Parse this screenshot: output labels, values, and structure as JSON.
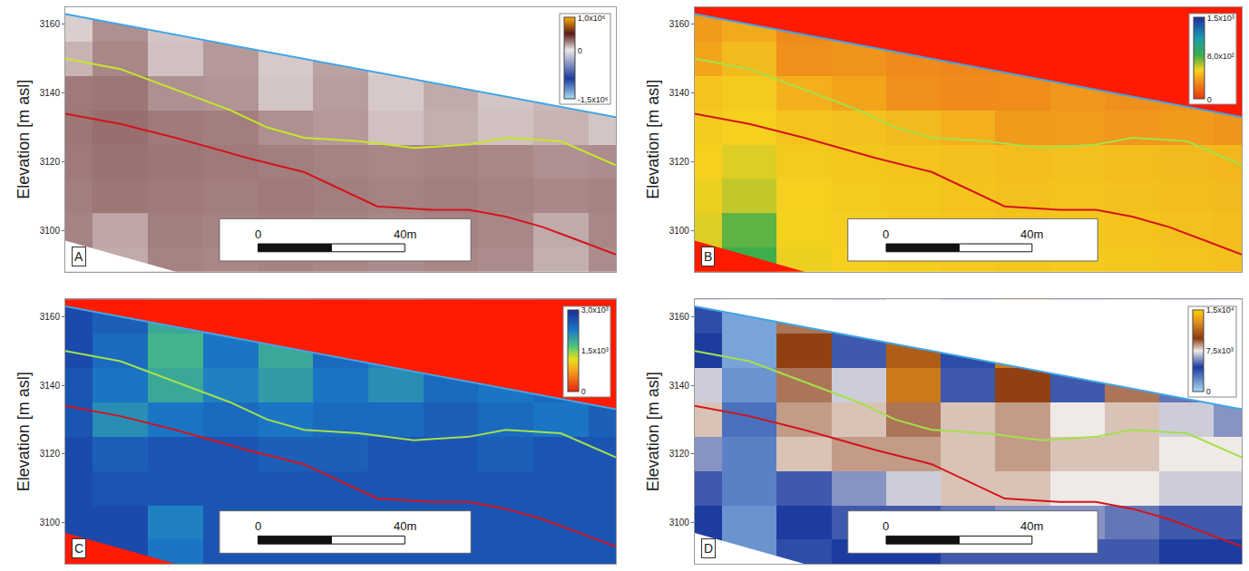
{
  "chart_data": [
    {
      "type": "heatmap",
      "panel": "A",
      "ylabel": "Elevation [m asl]",
      "xlim": [
        0,
        150
      ],
      "ylim": [
        3088,
        3165
      ],
      "yticks": [
        3100,
        3120,
        3140,
        3160
      ],
      "tick_labels": "y",
      "grid": false,
      "x": [
        0,
        15,
        30,
        45,
        60,
        75,
        90,
        105,
        120,
        135,
        150
      ],
      "y": [
        3090,
        3100,
        3110,
        3120,
        3130,
        3140,
        3150,
        3160
      ],
      "cells": [
        [
          220000,
          140000,
          230000,
          220000,
          230000,
          220000,
          210000,
          220000,
          210000,
          130000,
          210000
        ],
        [
          230000,
          150000,
          240000,
          230000,
          240000,
          230000,
          220000,
          230000,
          220000,
          140000,
          220000
        ],
        [
          240000,
          260000,
          250000,
          240000,
          250000,
          240000,
          230000,
          240000,
          230000,
          220000,
          230000
        ],
        [
          250000,
          270000,
          260000,
          250000,
          240000,
          230000,
          220000,
          230000,
          220000,
          200000,
          210000
        ],
        [
          260000,
          280000,
          250000,
          240000,
          200000,
          180000,
          90000,
          130000,
          90000,
          120000,
          80000
        ],
        [
          250000,
          260000,
          200000,
          190000,
          80000,
          170000,
          70000,
          140000,
          80000,
          110000,
          70000
        ],
        [
          120000,
          220000,
          90000,
          180000,
          70000,
          160000,
          60000,
          120000,
          70000,
          90000,
          60000
        ],
        [
          60000,
          200000,
          80000,
          150000,
          60000,
          100000,
          50000,
          60000,
          50000,
          60000,
          50000
        ]
      ],
      "colorbar_range": [
        -1500000,
        1000000
      ],
      "colorbar_ticks": [
        {
          "value": 1000000,
          "label": "1,0x10⁶"
        },
        0,
        {
          "value": -1500000,
          "label": "-1,5x10⁶"
        }
      ],
      "series": [
        {
          "color": "#41a5e6",
          "x": [
            0,
            30,
            60,
            90,
            120,
            150
          ],
          "values": [
            3163,
            3157,
            3151,
            3145,
            3139,
            3133
          ]
        },
        {
          "color": "#c5e82a",
          "x": [
            0,
            15,
            30,
            45,
            55,
            65,
            80,
            95,
            110,
            120,
            135,
            150
          ],
          "values": [
            3150,
            3147,
            3141,
            3135,
            3130,
            3127,
            3126,
            3124,
            3125,
            3127,
            3126,
            3119
          ]
        },
        {
          "color": "#d4141c",
          "x": [
            0,
            15,
            30,
            50,
            65,
            75,
            85,
            100,
            110,
            120,
            130,
            140,
            150
          ],
          "values": [
            3134,
            3131,
            3127,
            3121,
            3117,
            3112,
            3107,
            3106,
            3106,
            3104,
            3101,
            3097,
            3093
          ]
        }
      ],
      "data_bottom": {
        "x": [
          0,
          150
        ],
        "values": [
          3097,
          3052
        ]
      },
      "scale_bar": {
        "length": 40,
        "labels": [
          "0",
          "40m"
        ]
      }
    },
    {
      "type": "heatmap",
      "panel": "B",
      "ylabel": "Elevation [m asl]",
      "xlim": [
        0,
        150
      ],
      "ylim": [
        3088,
        3165
      ],
      "yticks": [
        3100,
        3120,
        3140,
        3160
      ],
      "tick_labels": "y",
      "grid": false,
      "x": [
        0,
        15,
        30,
        45,
        60,
        75,
        90,
        105,
        120,
        135,
        150
      ],
      "y": [
        3090,
        3100,
        3110,
        3120,
        3130,
        3140,
        3150,
        3160
      ],
      "cells": [
        [
          570,
          800,
          540,
          520,
          510,
          500,
          490,
          500,
          490,
          480,
          470
        ],
        [
          560,
          750,
          530,
          510,
          500,
          490,
          480,
          490,
          480,
          470,
          460
        ],
        [
          540,
          600,
          520,
          500,
          490,
          480,
          470,
          480,
          470,
          460,
          450
        ],
        [
          520,
          560,
          500,
          490,
          480,
          470,
          460,
          470,
          460,
          450,
          440
        ],
        [
          500,
          520,
          480,
          470,
          450,
          420,
          350,
          360,
          340,
          350,
          330
        ],
        [
          480,
          500,
          420,
          380,
          320,
          300,
          310,
          340,
          320,
          330,
          310
        ],
        [
          380,
          450,
          320,
          330,
          300,
          290,
          300,
          330,
          310,
          320,
          300
        ],
        [
          350,
          400,
          300,
          320,
          300,
          280,
          300,
          320,
          300,
          310,
          300
        ]
      ],
      "colorbar_range": [
        0,
        1500
      ],
      "colorbar_ticks": [
        {
          "value": 1500,
          "label": "1,5x10³"
        },
        {
          "value": 800,
          "label": "8,0x10²"
        },
        0
      ],
      "series": [
        {
          "color": "#41a5e6",
          "x": [
            0,
            30,
            60,
            90,
            120,
            150
          ],
          "values": [
            3163,
            3157,
            3151,
            3145,
            3139,
            3133
          ]
        },
        {
          "color": "#a4e04c",
          "x": [
            0,
            15,
            30,
            45,
            55,
            65,
            80,
            95,
            110,
            120,
            135,
            150
          ],
          "values": [
            3150,
            3147,
            3141,
            3135,
            3130,
            3127,
            3126,
            3124,
            3125,
            3127,
            3126,
            3119
          ]
        },
        {
          "color": "#d4141c",
          "x": [
            0,
            15,
            30,
            50,
            65,
            75,
            85,
            100,
            110,
            120,
            130,
            140,
            150
          ],
          "values": [
            3134,
            3131,
            3127,
            3121,
            3117,
            3112,
            3107,
            3106,
            3106,
            3104,
            3101,
            3097,
            3093
          ]
        }
      ],
      "data_bottom": {
        "x": [
          0,
          150
        ],
        "values": [
          3097,
          3052
        ]
      },
      "scale_bar": {
        "length": 40,
        "labels": [
          "0",
          "40m"
        ]
      }
    },
    {
      "type": "heatmap",
      "panel": "C",
      "ylabel": "Elevation [m asl]",
      "xlim": [
        0,
        150
      ],
      "ylim": [
        3088,
        3165
      ],
      "yticks": [
        3100,
        3120,
        3140,
        3160
      ],
      "tick_labels": "y",
      "grid": false,
      "x": [
        0,
        15,
        30,
        45,
        60,
        75,
        90,
        105,
        120,
        135,
        150
      ],
      "y": [
        3090,
        3100,
        3110,
        3120,
        3130,
        3140,
        3150,
        3160
      ],
      "cells": [
        [
          2700,
          2700,
          2300,
          2600,
          2600,
          2600,
          2600,
          2600,
          2600,
          2600,
          2600
        ],
        [
          2700,
          2700,
          2200,
          2600,
          2600,
          2600,
          2600,
          2600,
          2600,
          2600,
          2600
        ],
        [
          2700,
          2600,
          2600,
          2600,
          2600,
          2600,
          2600,
          2600,
          2600,
          2600,
          2600
        ],
        [
          2700,
          2500,
          2600,
          2600,
          2500,
          2500,
          2600,
          2600,
          2500,
          2600,
          2600
        ],
        [
          2600,
          2100,
          2300,
          2400,
          2300,
          2400,
          2400,
          2500,
          2400,
          2300,
          2500
        ],
        [
          2600,
          2300,
          1900,
          2200,
          2000,
          2300,
          2100,
          2400,
          2300,
          2400,
          2500
        ],
        [
          2700,
          2400,
          1800,
          2300,
          1900,
          2400,
          2200,
          2500,
          2400,
          2500,
          2600
        ],
        [
          2700,
          2500,
          1900,
          2400,
          2000,
          2500,
          2300,
          2600,
          2500,
          2600,
          2600
        ]
      ],
      "colorbar_range": [
        0,
        3000
      ],
      "colorbar_ticks": [
        {
          "value": 3000,
          "label": "3,0x10³"
        },
        {
          "value": 1500,
          "label": "1,5x10³"
        },
        0
      ],
      "series": [
        {
          "color": "#41a5e6",
          "x": [
            0,
            30,
            60,
            90,
            120,
            150
          ],
          "values": [
            3163,
            3157,
            3151,
            3145,
            3139,
            3133
          ]
        },
        {
          "color": "#a4e04c",
          "x": [
            0,
            15,
            30,
            45,
            55,
            65,
            80,
            95,
            110,
            120,
            135,
            150
          ],
          "values": [
            3150,
            3147,
            3141,
            3135,
            3130,
            3127,
            3126,
            3124,
            3125,
            3127,
            3126,
            3119
          ]
        },
        {
          "color": "#d4141c",
          "x": [
            0,
            15,
            30,
            50,
            65,
            75,
            85,
            100,
            110,
            120,
            130,
            140,
            150
          ],
          "values": [
            3134,
            3131,
            3127,
            3121,
            3117,
            3112,
            3107,
            3106,
            3106,
            3104,
            3101,
            3097,
            3093
          ]
        }
      ],
      "data_bottom": {
        "x": [
          0,
          150
        ],
        "values": [
          3097,
          3052
        ]
      },
      "scale_bar": {
        "length": 40,
        "labels": [
          "0",
          "40m"
        ]
      }
    },
    {
      "type": "heatmap",
      "panel": "D",
      "ylabel": "Elevation [m asl]",
      "xlim": [
        0,
        150
      ],
      "ylim": [
        3088,
        3165
      ],
      "yticks": [
        3100,
        3120,
        3140,
        3160
      ],
      "tick_labels": "y",
      "grid": false,
      "x": [
        0,
        15,
        30,
        45,
        60,
        75,
        90,
        105,
        120,
        135,
        150
      ],
      "y": [
        3090,
        3100,
        3110,
        3120,
        3130,
        3140,
        3150,
        3160
      ],
      "cells": [
        [
          4500,
          2000,
          4000,
          4500,
          4500,
          5000,
          5000,
          5000,
          5000,
          4500,
          4500
        ],
        [
          4500,
          2000,
          4500,
          5000,
          5000,
          5500,
          6000,
          6000,
          5500,
          5000,
          5000
        ],
        [
          5000,
          2500,
          5000,
          6000,
          7000,
          8000,
          8000,
          7500,
          7500,
          7000,
          7000
        ],
        [
          6000,
          2500,
          8000,
          8500,
          8500,
          8000,
          8500,
          8000,
          8000,
          7500,
          7500
        ],
        [
          8000,
          3000,
          8500,
          8000,
          9000,
          8000,
          8500,
          7500,
          8000,
          7000,
          6000
        ],
        [
          7000,
          2000,
          9000,
          7000,
          12000,
          5000,
          10000,
          5000,
          9000,
          5500,
          5000
        ],
        [
          4500,
          1500,
          10000,
          5000,
          11000,
          4000,
          12000,
          4500,
          10000,
          5000,
          4500
        ],
        [
          4000,
          1500,
          9000,
          4500,
          8000,
          3500,
          11000,
          4000,
          9000,
          4500,
          4000
        ]
      ],
      "colorbar_range": [
        0,
        15000
      ],
      "colorbar_ticks": [
        {
          "value": 15000,
          "label": "1,5x10⁴"
        },
        {
          "value": 7500,
          "label": "7,5x10³"
        },
        0
      ],
      "series": [
        {
          "color": "#41a5e6",
          "x": [
            0,
            30,
            60,
            90,
            120,
            150
          ],
          "values": [
            3163,
            3157,
            3151,
            3145,
            3139,
            3133
          ]
        },
        {
          "color": "#a4e04c",
          "x": [
            0,
            15,
            30,
            45,
            55,
            65,
            80,
            95,
            110,
            120,
            135,
            150
          ],
          "values": [
            3150,
            3147,
            3141,
            3135,
            3130,
            3127,
            3126,
            3124,
            3125,
            3127,
            3126,
            3119
          ]
        },
        {
          "color": "#d4141c",
          "x": [
            0,
            15,
            30,
            50,
            65,
            75,
            85,
            100,
            110,
            120,
            130,
            140,
            150
          ],
          "values": [
            3134,
            3131,
            3127,
            3121,
            3117,
            3112,
            3107,
            3106,
            3106,
            3104,
            3101,
            3097,
            3093
          ]
        }
      ],
      "data_bottom": {
        "x": [
          0,
          150
        ],
        "values": [
          3097,
          3052
        ]
      },
      "scale_bar": {
        "length": 40,
        "labels": [
          "0",
          "40m"
        ]
      }
    }
  ]
}
